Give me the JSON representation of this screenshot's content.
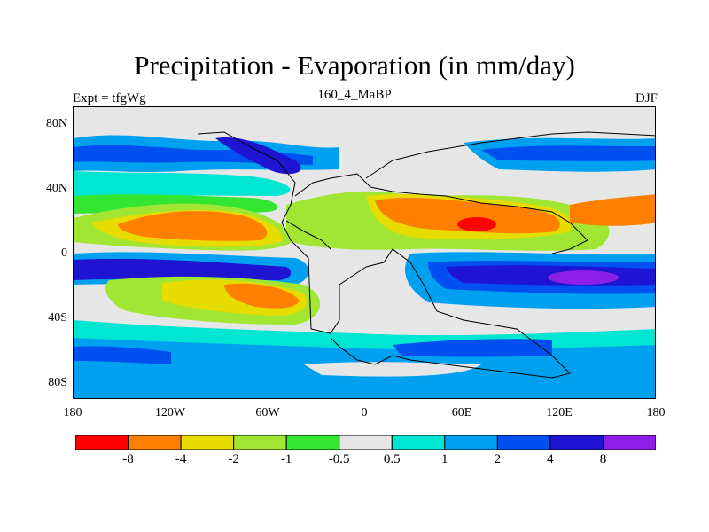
{
  "title": "Precipitation - Evaporation (in mm/day)",
  "left_label": "Expt = tfgWg",
  "center_label": "160_4_MaBP",
  "right_label": "DJF",
  "lat_ticks": [
    "80N",
    "40N",
    "0",
    "40S",
    "80S"
  ],
  "lon_ticks": [
    "180",
    "120W",
    "60W",
    "0",
    "60E",
    "120E",
    "180"
  ],
  "colorbar": {
    "colors": [
      "#ff0000",
      "#ff8000",
      "#e6dc00",
      "#a0e632",
      "#32e632",
      "#e6e6e6",
      "#00e6d2",
      "#00a0f0",
      "#0050f0",
      "#1e14d2",
      "#8c1ee6"
    ],
    "labels": [
      "-8",
      "-4",
      "-2",
      "-1",
      "-0.5",
      "0.5",
      "1",
      "2",
      "4",
      "8"
    ]
  }
}
